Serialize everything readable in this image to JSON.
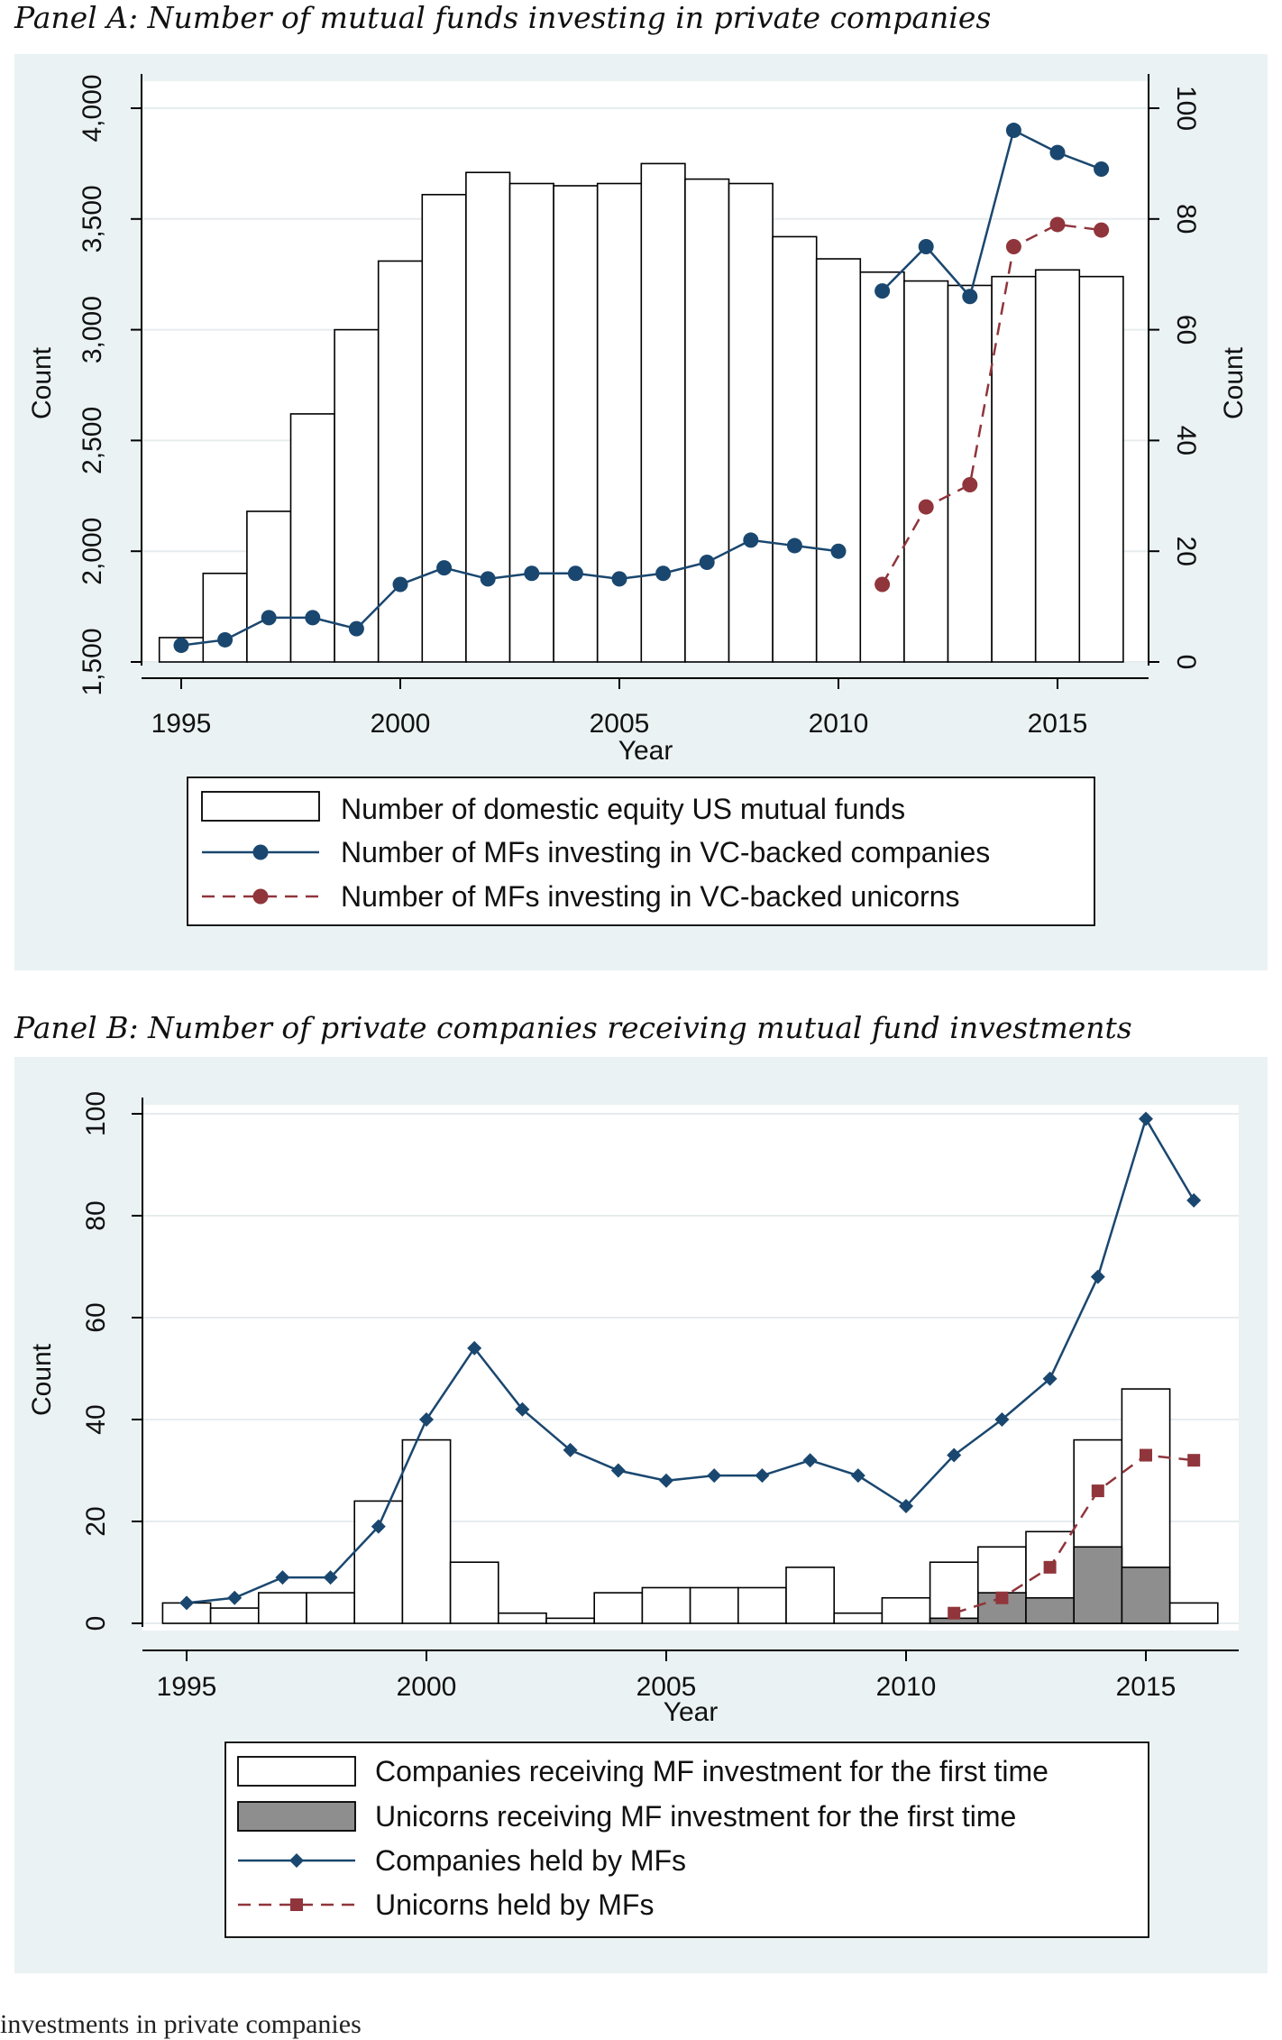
{
  "panel_a_title": "Panel A: Number of mutual funds investing in private companies",
  "panel_b_title": "Panel B: Number of private companies receiving mutual fund investments",
  "footer_text": "investments in private companies",
  "colors": {
    "background": "#eaf2f3",
    "navy": "#1a476f",
    "maroon": "#90353b",
    "gray": "#8e8e8e"
  },
  "chart_data": [
    {
      "type": "bar",
      "xlabel": "Year",
      "ylabel_left": "Count",
      "ylabel_right": "Count",
      "x_ticks": [
        1995,
        2000,
        2005,
        2010,
        2015
      ],
      "y_left_ticks": [
        "1,500",
        "2,000",
        "2,500",
        "3,000",
        "3,500",
        "4,000"
      ],
      "y_right_ticks": [
        "0",
        "20",
        "40",
        "60",
        "80",
        "100"
      ],
      "ylim_left": [
        1500,
        4000
      ],
      "ylim_right": [
        0,
        100
      ],
      "legend_position": "bottom",
      "years": [
        1995,
        1996,
        1997,
        1998,
        1999,
        2000,
        2001,
        2002,
        2003,
        2004,
        2005,
        2006,
        2007,
        2008,
        2009,
        2010,
        2011,
        2012,
        2013,
        2014,
        2015,
        2016
      ],
      "series": [
        {
          "name": "Number of domestic equity US mutual funds",
          "kind": "bar",
          "axis": "left",
          "values": [
            1610,
            1900,
            2180,
            2620,
            3000,
            3310,
            3610,
            3710,
            3660,
            3650,
            3660,
            3750,
            3680,
            3660,
            3420,
            3320,
            3260,
            3220,
            3200,
            3240,
            3270,
            3240
          ]
        },
        {
          "name": "Number of MFs investing in VC-backed companies",
          "kind": "line",
          "axis": "right",
          "marker": "circle",
          "dash": "solid",
          "x": [
            1995,
            1996,
            1997,
            1998,
            1999,
            2000,
            2001,
            2002,
            2003,
            2004,
            2005,
            2006,
            2007,
            2008,
            2009,
            2010,
            2011,
            2012,
            2013,
            2014,
            2015,
            2016
          ],
          "values": [
            3,
            4,
            8,
            8,
            6,
            14,
            17,
            15,
            16,
            16,
            15,
            16,
            18,
            22,
            21,
            20,
            67,
            75,
            66,
            96,
            92,
            89
          ]
        },
        {
          "name": "Number of MFs investing in VC-backed unicorns",
          "kind": "line",
          "axis": "right",
          "marker": "circle",
          "dash": "dashed",
          "x": [
            2011,
            2012,
            2013,
            2014,
            2015,
            2016
          ],
          "values": [
            14,
            28,
            32,
            75,
            79,
            78
          ]
        }
      ]
    },
    {
      "type": "bar",
      "xlabel": "Year",
      "ylabel": "Count",
      "x_ticks": [
        1995,
        2000,
        2005,
        2010,
        2015
      ],
      "y_ticks": [
        "0",
        "20",
        "40",
        "60",
        "80",
        "100"
      ],
      "ylim": [
        0,
        100
      ],
      "legend_position": "bottom",
      "years": [
        1995,
        1996,
        1997,
        1998,
        1999,
        2000,
        2001,
        2002,
        2003,
        2004,
        2005,
        2006,
        2007,
        2008,
        2009,
        2010,
        2011,
        2012,
        2013,
        2014,
        2015,
        2016
      ],
      "series": [
        {
          "name": "Companies receiving MF investment for the first time",
          "kind": "bar",
          "values": [
            4,
            3,
            6,
            6,
            24,
            36,
            12,
            2,
            1,
            6,
            7,
            7,
            7,
            11,
            2,
            5,
            12,
            15,
            18,
            36,
            46,
            4
          ]
        },
        {
          "name": "Unicorns receiving MF investment for the first time",
          "kind": "bar_overlay",
          "values": [
            0,
            0,
            0,
            0,
            0,
            0,
            0,
            0,
            0,
            0,
            0,
            0,
            0,
            0,
            0,
            0,
            1,
            6,
            5,
            15,
            11,
            0
          ]
        },
        {
          "name": "Companies held by MFs",
          "kind": "line",
          "marker": "diamond",
          "dash": "solid",
          "x": [
            1995,
            1996,
            1997,
            1998,
            1999,
            2000,
            2001,
            2002,
            2003,
            2004,
            2005,
            2006,
            2007,
            2008,
            2009,
            2010,
            2011,
            2012,
            2013,
            2014,
            2015,
            2016
          ],
          "values": [
            4,
            5,
            9,
            9,
            19,
            40,
            54,
            42,
            34,
            30,
            28,
            29,
            29,
            32,
            29,
            23,
            33,
            40,
            48,
            68,
            99,
            83
          ]
        },
        {
          "name": "Unicorns held by MFs",
          "kind": "line",
          "marker": "square",
          "dash": "dashed",
          "x": [
            2011,
            2012,
            2013,
            2014,
            2015,
            2016
          ],
          "values": [
            2,
            5,
            11,
            26,
            33,
            32
          ]
        }
      ]
    }
  ]
}
